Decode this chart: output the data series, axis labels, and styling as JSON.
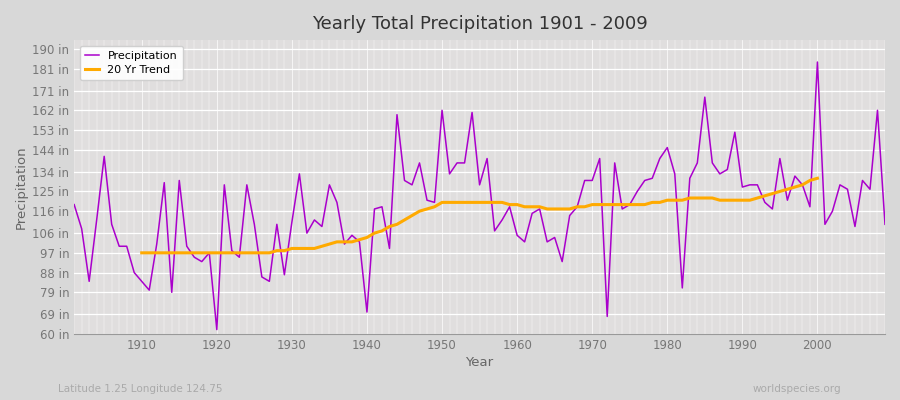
{
  "title": "Yearly Total Precipitation 1901 - 2009",
  "xlabel": "Year",
  "ylabel": "Precipitation",
  "subtitle": "Latitude 1.25 Longitude 124.75",
  "watermark": "worldspecies.org",
  "precip_color": "#aa00cc",
  "trend_color": "#ffaa00",
  "fig_bg_color": "#d8d8d8",
  "plot_bg_color": "#e0dede",
  "ylim": [
    60,
    194
  ],
  "yticks": [
    60,
    69,
    79,
    88,
    97,
    106,
    116,
    125,
    134,
    144,
    153,
    162,
    171,
    181,
    190
  ],
  "xlim": [
    1901,
    2009
  ],
  "xticks": [
    1910,
    1920,
    1930,
    1940,
    1950,
    1960,
    1970,
    1980,
    1990,
    2000
  ],
  "years": [
    1901,
    1902,
    1903,
    1904,
    1905,
    1906,
    1907,
    1908,
    1909,
    1910,
    1911,
    1912,
    1913,
    1914,
    1915,
    1916,
    1917,
    1918,
    1919,
    1920,
    1921,
    1922,
    1923,
    1924,
    1925,
    1926,
    1927,
    1928,
    1929,
    1930,
    1931,
    1932,
    1933,
    1934,
    1935,
    1936,
    1937,
    1938,
    1939,
    1940,
    1941,
    1942,
    1943,
    1944,
    1945,
    1946,
    1947,
    1948,
    1949,
    1950,
    1951,
    1952,
    1953,
    1954,
    1955,
    1956,
    1957,
    1958,
    1959,
    1960,
    1961,
    1962,
    1963,
    1964,
    1965,
    1966,
    1967,
    1968,
    1969,
    1970,
    1971,
    1972,
    1973,
    1974,
    1975,
    1976,
    1977,
    1978,
    1979,
    1980,
    1981,
    1982,
    1983,
    1984,
    1985,
    1986,
    1987,
    1988,
    1989,
    1990,
    1991,
    1992,
    1993,
    1994,
    1995,
    1996,
    1997,
    1998,
    1999,
    2000,
    2001,
    2002,
    2003,
    2004,
    2005,
    2006,
    2007,
    2008,
    2009
  ],
  "precip": [
    119,
    108,
    84,
    112,
    141,
    110,
    100,
    100,
    88,
    84,
    80,
    101,
    129,
    79,
    130,
    100,
    95,
    93,
    97,
    62,
    128,
    98,
    95,
    128,
    110,
    86,
    84,
    110,
    87,
    111,
    133,
    106,
    112,
    109,
    128,
    120,
    101,
    105,
    102,
    70,
    117,
    118,
    99,
    160,
    130,
    128,
    138,
    121,
    120,
    162,
    133,
    138,
    138,
    161,
    128,
    140,
    107,
    112,
    118,
    105,
    102,
    115,
    117,
    102,
    104,
    93,
    114,
    118,
    130,
    130,
    140,
    68,
    138,
    117,
    119,
    125,
    130,
    131,
    140,
    145,
    133,
    81,
    131,
    138,
    168,
    138,
    133,
    135,
    152,
    127,
    128,
    128,
    120,
    117,
    140,
    121,
    132,
    128,
    118,
    184,
    110,
    116,
    128,
    126,
    109,
    130,
    126,
    162,
    110
  ],
  "trend": [
    null,
    null,
    null,
    null,
    null,
    null,
    null,
    null,
    null,
    97,
    97,
    97,
    97,
    97,
    97,
    97,
    97,
    97,
    97,
    97,
    97,
    97,
    97,
    97,
    97,
    97,
    97,
    98,
    98,
    99,
    99,
    99,
    99,
    100,
    101,
    102,
    102,
    102,
    103,
    104,
    106,
    107,
    109,
    110,
    112,
    114,
    116,
    117,
    118,
    120,
    120,
    120,
    120,
    120,
    120,
    120,
    120,
    120,
    119,
    119,
    118,
    118,
    118,
    117,
    117,
    117,
    117,
    118,
    118,
    119,
    119,
    119,
    119,
    119,
    119,
    119,
    119,
    120,
    120,
    121,
    121,
    121,
    122,
    122,
    122,
    122,
    121,
    121,
    121,
    121,
    121,
    122,
    123,
    124,
    125,
    126,
    127,
    128,
    130,
    131,
    null,
    null,
    null,
    null,
    null,
    null,
    null,
    null,
    null
  ]
}
